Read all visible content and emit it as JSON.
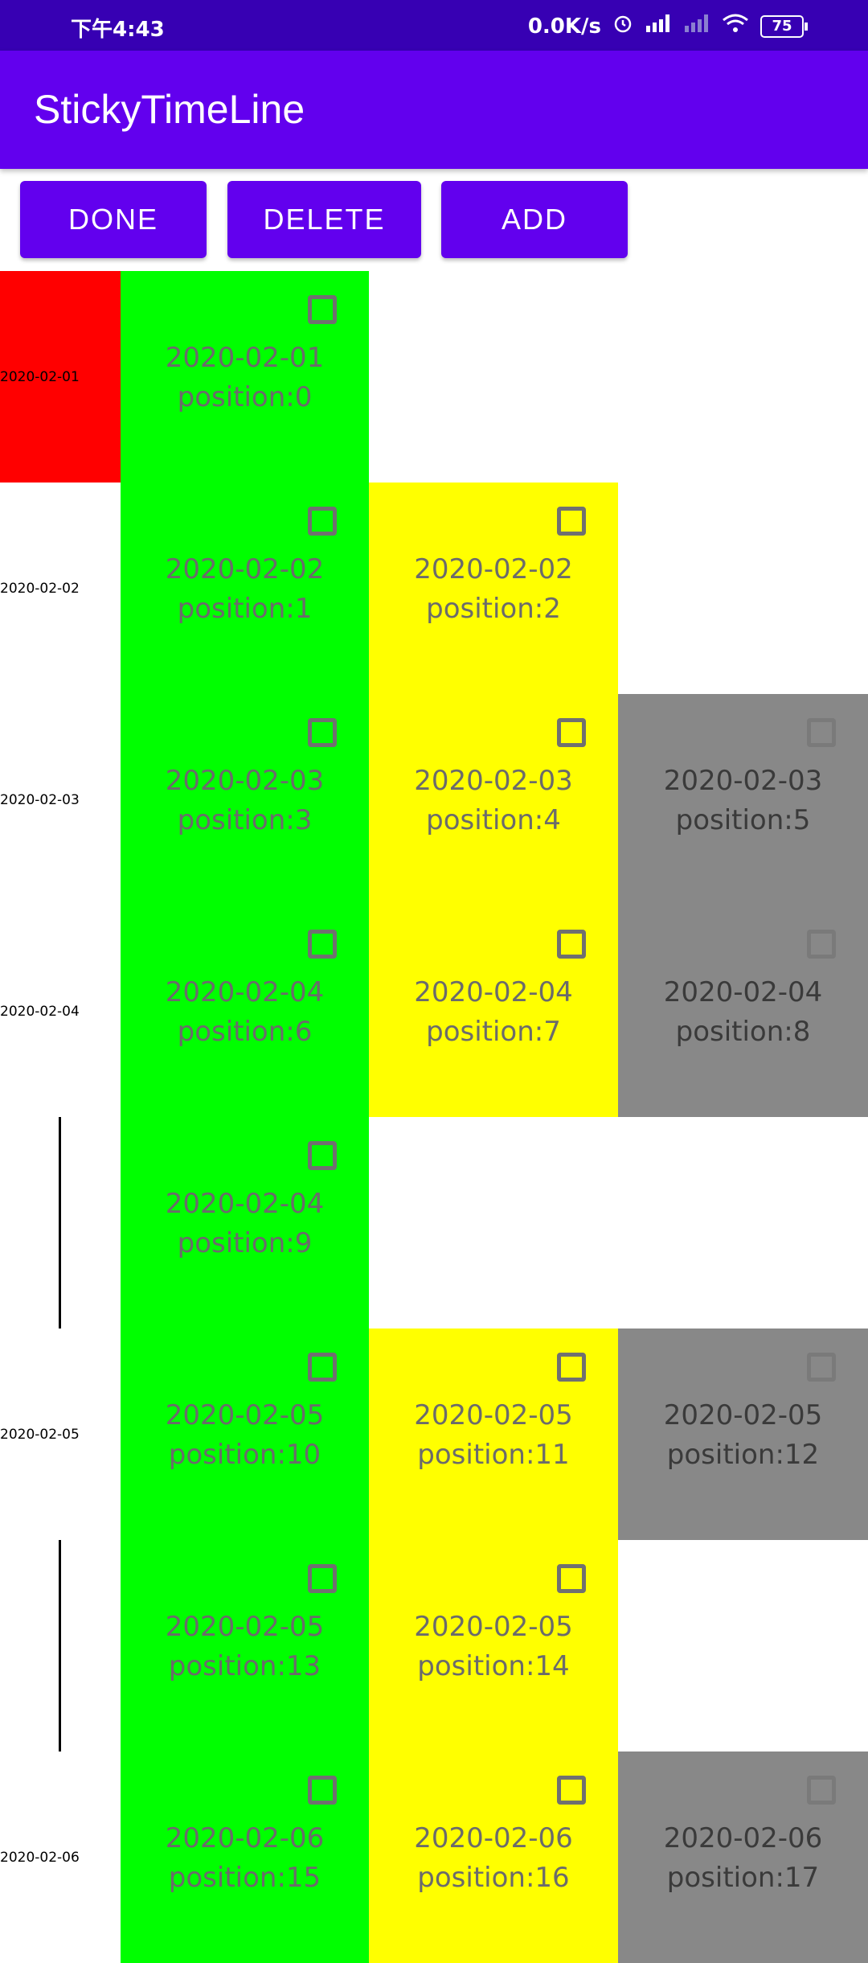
{
  "status_bar": {
    "time": "下午4:43",
    "net_speed": "0.0K/s",
    "battery": "75",
    "icons": [
      "alarm-icon",
      "hd-signal-icon",
      "signal-icon",
      "wifi-icon",
      "battery-icon"
    ]
  },
  "app_bar": {
    "title": "StickyTimeLine"
  },
  "toolbar": {
    "done_label": "DONE",
    "delete_label": "DELETE",
    "add_label": "ADD"
  },
  "colors": {
    "primary": "#6200ee",
    "primary_dark": "#3700b3",
    "date_highlight": "#ff0000",
    "column_1": "#00ff00",
    "column_2": "#ffff00",
    "column_3": "#888888"
  },
  "rows": [
    {
      "date": "2020-02-01",
      "date_highlight": true,
      "line": false,
      "items": [
        {
          "date": "2020-02-01",
          "position": "position:0"
        }
      ]
    },
    {
      "date": "2020-02-02",
      "date_highlight": false,
      "line": false,
      "items": [
        {
          "date": "2020-02-02",
          "position": "position:1"
        },
        {
          "date": "2020-02-02",
          "position": "position:2"
        }
      ]
    },
    {
      "date": "2020-02-03",
      "date_highlight": false,
      "line": false,
      "items": [
        {
          "date": "2020-02-03",
          "position": "position:3"
        },
        {
          "date": "2020-02-03",
          "position": "position:4"
        },
        {
          "date": "2020-02-03",
          "position": "position:5"
        }
      ]
    },
    {
      "date": "2020-02-04",
      "date_highlight": false,
      "line": false,
      "items": [
        {
          "date": "2020-02-04",
          "position": "position:6"
        },
        {
          "date": "2020-02-04",
          "position": "position:7"
        },
        {
          "date": "2020-02-04",
          "position": "position:8"
        }
      ]
    },
    {
      "date": "",
      "date_highlight": false,
      "line": true,
      "items": [
        {
          "date": "2020-02-04",
          "position": "position:9"
        }
      ]
    },
    {
      "date": "2020-02-05",
      "date_highlight": false,
      "line": false,
      "items": [
        {
          "date": "2020-02-05",
          "position": "position:10"
        },
        {
          "date": "2020-02-05",
          "position": "position:11"
        },
        {
          "date": "2020-02-05",
          "position": "position:12"
        }
      ]
    },
    {
      "date": "",
      "date_highlight": false,
      "line": true,
      "items": [
        {
          "date": "2020-02-05",
          "position": "position:13"
        },
        {
          "date": "2020-02-05",
          "position": "position:14"
        }
      ]
    },
    {
      "date": "2020-02-06",
      "date_highlight": false,
      "line": false,
      "items": [
        {
          "date": "2020-02-06",
          "position": "position:15"
        },
        {
          "date": "2020-02-06",
          "position": "position:16"
        },
        {
          "date": "2020-02-06",
          "position": "position:17"
        }
      ]
    }
  ]
}
